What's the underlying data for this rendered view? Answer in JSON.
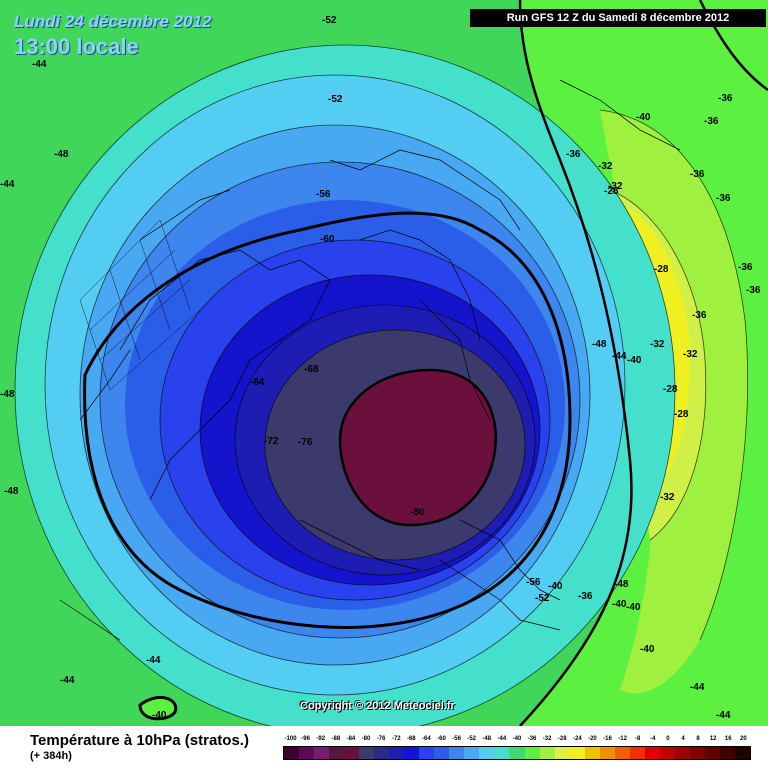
{
  "header": {
    "date_line": "Lundi 24 décembre 2012",
    "time_line": "13:00 locale",
    "run_info": "Run GFS 12 Z du Samedi 8 décembre 2012"
  },
  "copyright": "Copyright © 2012 Meteociel.fr",
  "footer": {
    "title": "Température à 10hPa (stratos.)",
    "lead": "(+ 384h)"
  },
  "scale": {
    "values": [
      "-100",
      "-96",
      "-92",
      "-88",
      "-84",
      "-80",
      "-76",
      "-72",
      "-68",
      "-64",
      "-60",
      "-56",
      "-52",
      "-48",
      "-44",
      "-40",
      "-36",
      "-32",
      "-28",
      "-24",
      "-20",
      "-16",
      "-12",
      "-8",
      "-4",
      "0",
      "4",
      "8",
      "12",
      "16",
      "20"
    ],
    "colors": [
      "#3a0030",
      "#5e0a58",
      "#7a1a70",
      "#5a1440",
      "#6b0f3c",
      "#3c3a6c",
      "#2a2a8c",
      "#1d1db4",
      "#1414cc",
      "#2a42ee",
      "#2a5ee8",
      "#3c86ee",
      "#48a8f2",
      "#54cdf2",
      "#44e0cc",
      "#40d870",
      "#5cf040",
      "#a0f040",
      "#e0f040",
      "#f0f020",
      "#f0c000",
      "#f09000",
      "#f06000",
      "#f03000",
      "#e00000",
      "#c00000",
      "#a00000",
      "#800000",
      "#600000",
      "#400000",
      "#200000"
    ]
  },
  "map": {
    "colors": {
      "outer": "#3fd65a",
      "cyan": "#44e0cc",
      "lightblue": "#54cdf2",
      "skyblue": "#48a8f2",
      "blue52": "#3c86ee",
      "blue56": "#2a5ee8",
      "blue60": "#2a42ee",
      "blue64": "#1414cc",
      "blue68": "#1d1db4",
      "blue72": "#2a2a8c",
      "navy76": "#3c3a6c",
      "core80": "#6b0f3c",
      "green40": "#5cf040",
      "lime36": "#a0f040",
      "yellowgreen32": "#d0f048",
      "yellow28": "#f0f020"
    },
    "labels": [
      {
        "text": "-52"
      },
      {
        "text": "-44"
      },
      {
        "text": "-52"
      },
      {
        "text": "-48"
      },
      {
        "text": "-44"
      },
      {
        "text": "-56"
      },
      {
        "text": "-60"
      },
      {
        "text": "-64"
      },
      {
        "text": "-68"
      },
      {
        "text": "-72"
      },
      {
        "text": "-76"
      },
      {
        "text": "-80"
      },
      {
        "text": "-48"
      },
      {
        "text": "-48"
      },
      {
        "text": "-44"
      },
      {
        "text": "-44"
      },
      {
        "text": "-40"
      },
      {
        "text": "-40"
      },
      {
        "text": "-36"
      },
      {
        "text": "-36"
      },
      {
        "text": "-36"
      },
      {
        "text": "-32"
      },
      {
        "text": "-28"
      },
      {
        "text": "-28"
      },
      {
        "text": "-32"
      },
      {
        "text": "-36"
      },
      {
        "text": "-36"
      },
      {
        "text": "-36"
      },
      {
        "text": "-32"
      },
      {
        "text": "-28"
      },
      {
        "text": "-28"
      },
      {
        "text": "-32"
      },
      {
        "text": "-32"
      },
      {
        "text": "-36"
      },
      {
        "text": "-40"
      },
      {
        "text": "-36"
      },
      {
        "text": "-40"
      },
      {
        "text": "-44"
      },
      {
        "text": "-44"
      },
      {
        "text": "-52"
      },
      {
        "text": "-56"
      },
      {
        "text": "-40"
      },
      {
        "text": "-36"
      },
      {
        "text": "-40"
      },
      {
        "text": "-44"
      },
      {
        "text": "-40"
      },
      {
        "text": "-48"
      },
      {
        "text": "-48"
      }
    ]
  }
}
